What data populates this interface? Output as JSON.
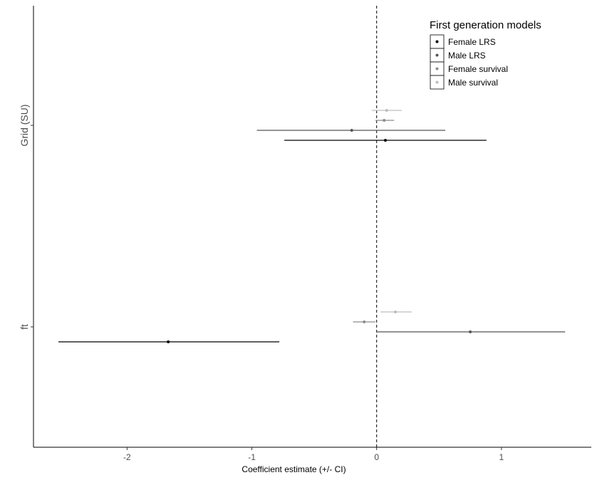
{
  "chart_data": {
    "type": "forest",
    "title": "",
    "xlabel": "Coefficient estimate (+/- CI)",
    "ylabel": "",
    "xlim": [
      -2.75,
      1.72
    ],
    "x_ticks": [
      -2,
      -1,
      0,
      1
    ],
    "x_tick_labels": [
      "-2",
      "-1",
      "0",
      "1"
    ],
    "reference_line": 0,
    "categories": [
      "ft",
      "Grid (SU)"
    ],
    "legend": {
      "title": "First generation models",
      "position": "top-right",
      "entries": [
        "Female LRS",
        "Male LRS",
        "Female survival",
        "Male survival"
      ]
    },
    "series": [
      {
        "name": "Female LRS",
        "color": "#000000",
        "points": [
          {
            "category": "Grid (SU)",
            "estimate": 0.07,
            "lower": -0.74,
            "upper": 0.88
          },
          {
            "category": "ft",
            "estimate": -1.67,
            "lower": -2.55,
            "upper": -0.78
          }
        ]
      },
      {
        "name": "Male LRS",
        "color": "#555555",
        "points": [
          {
            "category": "Grid (SU)",
            "estimate": -0.2,
            "lower": -0.96,
            "upper": 0.55
          },
          {
            "category": "ft",
            "estimate": 0.75,
            "lower": 0.0,
            "upper": 1.51
          }
        ]
      },
      {
        "name": "Female survival",
        "color": "#8c8c8c",
        "points": [
          {
            "category": "Grid (SU)",
            "estimate": 0.06,
            "lower": -0.01,
            "upper": 0.14
          },
          {
            "category": "ft",
            "estimate": -0.1,
            "lower": -0.19,
            "upper": -0.01
          }
        ]
      },
      {
        "name": "Male survival",
        "color": "#bdbdbd",
        "points": [
          {
            "category": "Grid (SU)",
            "estimate": 0.08,
            "lower": -0.04,
            "upper": 0.2
          },
          {
            "category": "ft",
            "estimate": 0.15,
            "lower": 0.03,
            "upper": 0.28
          }
        ]
      }
    ]
  }
}
